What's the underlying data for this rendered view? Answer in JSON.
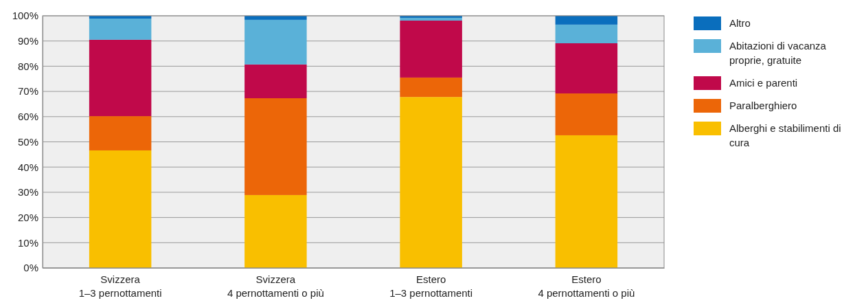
{
  "chart_data": {
    "type": "bar",
    "stacked": true,
    "categories": [
      "Svizzera\n1–3 pernottamenti",
      "Svizzera\n4 pernottamenti o più",
      "Estero\n1–3 pernottamenti",
      "Estero\n4 pernottamenti o più"
    ],
    "series": [
      {
        "name": "Alberghi e stabilimenti di cura",
        "color": "#f9bf00",
        "values": [
          46.6,
          28.9,
          67.8,
          52.6
        ]
      },
      {
        "name": "Paralberghiero",
        "color": "#ec6608",
        "values": [
          13.6,
          38.4,
          7.7,
          16.6
        ]
      },
      {
        "name": "Amici e parenti",
        "color": "#c0094a",
        "values": [
          30.3,
          13.4,
          22.6,
          19.9
        ]
      },
      {
        "name": "Abitazioni di vacanza proprie, gratuite",
        "color": "#5ab1d8",
        "values": [
          8.4,
          17.7,
          1.1,
          7.4
        ]
      },
      {
        "name": "Altro",
        "color": "#0a6ebd",
        "values": [
          1.1,
          1.6,
          0.8,
          3.5
        ]
      }
    ],
    "ylim": [
      0,
      100
    ],
    "yticks": [
      {
        "value": 0,
        "label": "0%"
      },
      {
        "value": 10,
        "label": "10%"
      },
      {
        "value": 20,
        "label": "20%"
      },
      {
        "value": 30,
        "label": "30%"
      },
      {
        "value": 40,
        "label": "40%"
      },
      {
        "value": 50,
        "label": "50%"
      },
      {
        "value": 60,
        "label": "60%"
      },
      {
        "value": 70,
        "label": "70%"
      },
      {
        "value": 80,
        "label": "80%"
      },
      {
        "value": 90,
        "label": "90%"
      },
      {
        "value": 100,
        "label": "100%"
      }
    ],
    "grid": "y",
    "legend": "right"
  }
}
